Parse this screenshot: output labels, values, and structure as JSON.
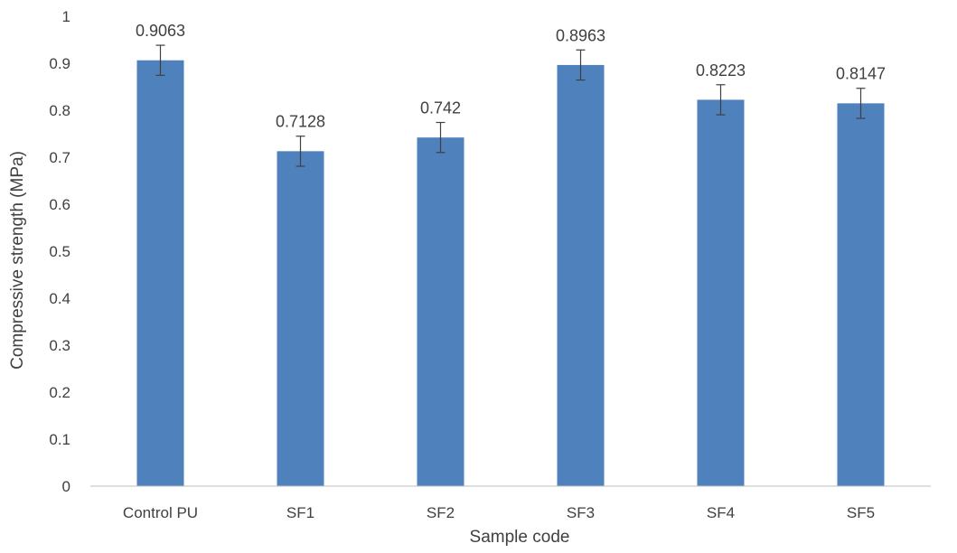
{
  "chart_data": {
    "type": "bar",
    "title": "",
    "xlabel": "Sample code",
    "ylabel": "Compressive strength (MPa)",
    "categories": [
      "Control PU",
      "SF1",
      "SF2",
      "SF3",
      "SF4",
      "SF5"
    ],
    "values": [
      0.9063,
      0.7128,
      0.742,
      0.8963,
      0.8223,
      0.8147
    ],
    "data_labels": [
      "0.9063",
      "0.7128",
      "0.742",
      "0.8963",
      "0.8223",
      "0.8147"
    ],
    "error": [
      0.032,
      0.032,
      0.032,
      0.032,
      0.032,
      0.032
    ],
    "ylim": [
      0,
      1
    ],
    "yticks": [
      "0",
      "0.1",
      "0.2",
      "0.3",
      "0.4",
      "0.5",
      "0.6",
      "0.7",
      "0.8",
      "0.9",
      "1"
    ],
    "grid": false,
    "legend": "none",
    "bar_color": "#4f81bd",
    "errorbar_color": "#404040",
    "axis_color": "#bfbfbf"
  }
}
